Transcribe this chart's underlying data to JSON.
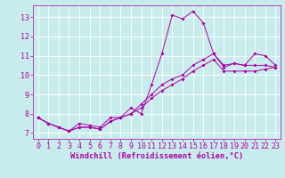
{
  "title": "",
  "xlabel": "Windchill (Refroidissement éolien,°C)",
  "ylabel": "",
  "background_color": "#c8ecec",
  "grid_color": "#b0d8d8",
  "line_color": "#aa00aa",
  "xlim": [
    -0.5,
    23.5
  ],
  "ylim": [
    6.7,
    13.6
  ],
  "yticks": [
    7,
    8,
    9,
    10,
    11,
    12,
    13
  ],
  "xticks": [
    0,
    1,
    2,
    3,
    4,
    5,
    6,
    7,
    8,
    9,
    10,
    11,
    12,
    13,
    14,
    15,
    16,
    17,
    18,
    19,
    20,
    21,
    22,
    23
  ],
  "line1": {
    "x": [
      0,
      1,
      2,
      3,
      4,
      5,
      6,
      7,
      8,
      9,
      10,
      11,
      12,
      13,
      14,
      15,
      16,
      17,
      18,
      19,
      20,
      21,
      22,
      23
    ],
    "y": [
      7.8,
      7.5,
      7.3,
      7.1,
      7.5,
      7.4,
      7.3,
      7.8,
      7.8,
      8.3,
      8.0,
      9.5,
      11.1,
      13.1,
      12.9,
      13.3,
      12.7,
      11.1,
      10.4,
      10.6,
      10.5,
      11.1,
      11.0,
      10.5
    ]
  },
  "line2": {
    "x": [
      0,
      1,
      2,
      3,
      4,
      5,
      6,
      7,
      8,
      9,
      10,
      11,
      12,
      13,
      14,
      15,
      16,
      17,
      18,
      19,
      20,
      21,
      22,
      23
    ],
    "y": [
      7.8,
      7.5,
      7.3,
      7.1,
      7.3,
      7.3,
      7.2,
      7.6,
      7.8,
      8.0,
      8.5,
      9.0,
      9.5,
      9.8,
      10.0,
      10.5,
      10.8,
      11.1,
      10.5,
      10.6,
      10.5,
      10.5,
      10.5,
      10.4
    ]
  },
  "line3": {
    "x": [
      0,
      1,
      2,
      3,
      4,
      5,
      6,
      7,
      8,
      9,
      10,
      11,
      12,
      13,
      14,
      15,
      16,
      17,
      18,
      19,
      20,
      21,
      22,
      23
    ],
    "y": [
      7.8,
      7.5,
      7.3,
      7.1,
      7.3,
      7.3,
      7.2,
      7.6,
      7.8,
      8.0,
      8.3,
      8.8,
      9.2,
      9.5,
      9.8,
      10.2,
      10.5,
      10.8,
      10.2,
      10.2,
      10.2,
      10.2,
      10.3,
      10.4
    ]
  },
  "tick_fontsize": 6.0,
  "xlabel_fontsize": 6.2,
  "tick_color": "#aa00aa",
  "xlabel_color": "#aa00aa"
}
